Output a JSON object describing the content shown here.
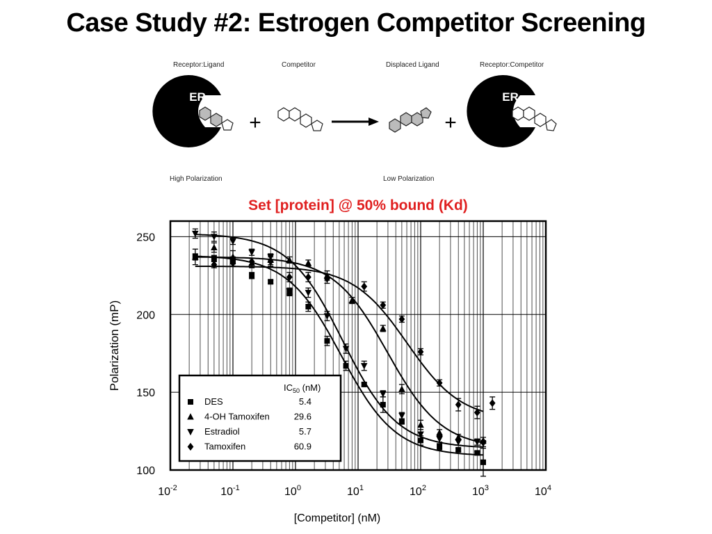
{
  "slide": {
    "title": "Case Study #2: Estrogen Competitor Screening",
    "subtitle": "Set [protein] @ 50% bound (Kd)"
  },
  "schematic": {
    "labels": {
      "receptor_ligand": "Receptor:Ligand",
      "competitor": "Competitor",
      "displaced_ligand": "Displaced Ligand",
      "receptor_competitor": "Receptor:Competitor",
      "high_polarization": "High Polarization",
      "low_polarization": "Low Polarization",
      "receptor_symbol": "ER",
      "plus": "+"
    }
  },
  "chart_data": {
    "type": "scatter",
    "xlabel": "[Competitor] (nM)",
    "ylabel": "Polarization (mP)",
    "xscale": "log",
    "xlim": [
      0.01,
      10000
    ],
    "ylim": [
      100,
      260
    ],
    "yticks": [
      100,
      150,
      200,
      250
    ],
    "xtick_labels": [
      {
        "base": "10",
        "exp": "-2",
        "value": 0.01
      },
      {
        "base": "10",
        "exp": "-1",
        "value": 0.1
      },
      {
        "base": "10",
        "exp": "0",
        "value": 1
      },
      {
        "base": "10",
        "exp": "1",
        "value": 10
      },
      {
        "base": "10",
        "exp": "2",
        "value": 100
      },
      {
        "base": "10",
        "exp": "3",
        "value": 1000
      },
      {
        "base": "10",
        "exp": "4",
        "value": 10000
      }
    ],
    "grid": true,
    "legend_position": "bottom-left",
    "legend_header": "IC",
    "legend_header_sub": "50",
    "legend_header_unit": " (nM)",
    "series": [
      {
        "name": "DES",
        "marker": "square",
        "ic50": "5.4",
        "curve": {
          "top": 238,
          "bottom": 109,
          "ic50": 5.4,
          "hill": 1
        },
        "points": [
          [
            0.025,
            237,
            2
          ],
          [
            0.05,
            236,
            2
          ],
          [
            0.1,
            234,
            3
          ],
          [
            0.2,
            225,
            2
          ],
          [
            0.4,
            221,
            1
          ],
          [
            0.8,
            214,
            2
          ],
          [
            1.6,
            205,
            3
          ],
          [
            3.2,
            183,
            3
          ],
          [
            6.4,
            167,
            3
          ],
          [
            12.5,
            155,
            1
          ],
          [
            25,
            142,
            5
          ],
          [
            50,
            131,
            1
          ],
          [
            100,
            119,
            3
          ],
          [
            200,
            115,
            2
          ],
          [
            400,
            113,
            1
          ],
          [
            800,
            111,
            1
          ],
          [
            1000,
            105,
            9
          ]
        ]
      },
      {
        "name": "4-OH Tamoxifen",
        "marker": "triangle-up",
        "ic50": "29.6",
        "curve": {
          "top": 237,
          "bottom": 114,
          "ic50": 29.6,
          "hill": 1
        },
        "points": [
          [
            0.025,
            237,
            5
          ],
          [
            0.05,
            243,
            3
          ],
          [
            0.1,
            237,
            4
          ],
          [
            0.2,
            233,
            3
          ],
          [
            0.4,
            235,
            3
          ],
          [
            0.8,
            235,
            2
          ],
          [
            1.6,
            233,
            2
          ],
          [
            3.2,
            225,
            3
          ],
          [
            8,
            209,
            2
          ],
          [
            25,
            191,
            2
          ],
          [
            50,
            152,
            3
          ],
          [
            100,
            129,
            3
          ],
          [
            200,
            124,
            2
          ],
          [
            400,
            121,
            2
          ],
          [
            1000,
            119,
            2
          ]
        ]
      },
      {
        "name": "Estradiol",
        "marker": "triangle-down",
        "ic50": "5.7",
        "curve": {
          "top": 252,
          "bottom": 114,
          "ic50": 5.7,
          "hill": 1
        },
        "points": [
          [
            0.025,
            252,
            3
          ],
          [
            0.05,
            250,
            3
          ],
          [
            0.1,
            247,
            2
          ],
          [
            0.2,
            240,
            2
          ],
          [
            0.4,
            237,
            2
          ],
          [
            0.8,
            215,
            2
          ],
          [
            1.6,
            214,
            3
          ],
          [
            3.2,
            199,
            3
          ],
          [
            6.4,
            178,
            3
          ],
          [
            12.5,
            167,
            3
          ],
          [
            25,
            149,
            2
          ],
          [
            50,
            135,
            2
          ],
          [
            100,
            123,
            3
          ],
          [
            200,
            120,
            2
          ],
          [
            400,
            118,
            2
          ],
          [
            800,
            118,
            2
          ],
          [
            1000,
            117,
            2
          ]
        ]
      },
      {
        "name": "Tamoxifen",
        "marker": "diamond",
        "ic50": "60.9",
        "curve": {
          "top": 231,
          "bottom": 132,
          "ic50": 60.9,
          "hill": 1
        },
        "points": [
          [
            0.05,
            232,
            2
          ],
          [
            0.1,
            233,
            2
          ],
          [
            0.2,
            234,
            2
          ],
          [
            0.4,
            234,
            3
          ],
          [
            0.8,
            224,
            3
          ],
          [
            1.6,
            224,
            3
          ],
          [
            3.2,
            223,
            3
          ],
          [
            12.5,
            218,
            3
          ],
          [
            25,
            206,
            2
          ],
          [
            50,
            197,
            2
          ],
          [
            100,
            176,
            2
          ],
          [
            200,
            156,
            2
          ],
          [
            400,
            142,
            4
          ],
          [
            800,
            137,
            4
          ],
          [
            1400,
            143,
            4
          ]
        ]
      }
    ]
  }
}
